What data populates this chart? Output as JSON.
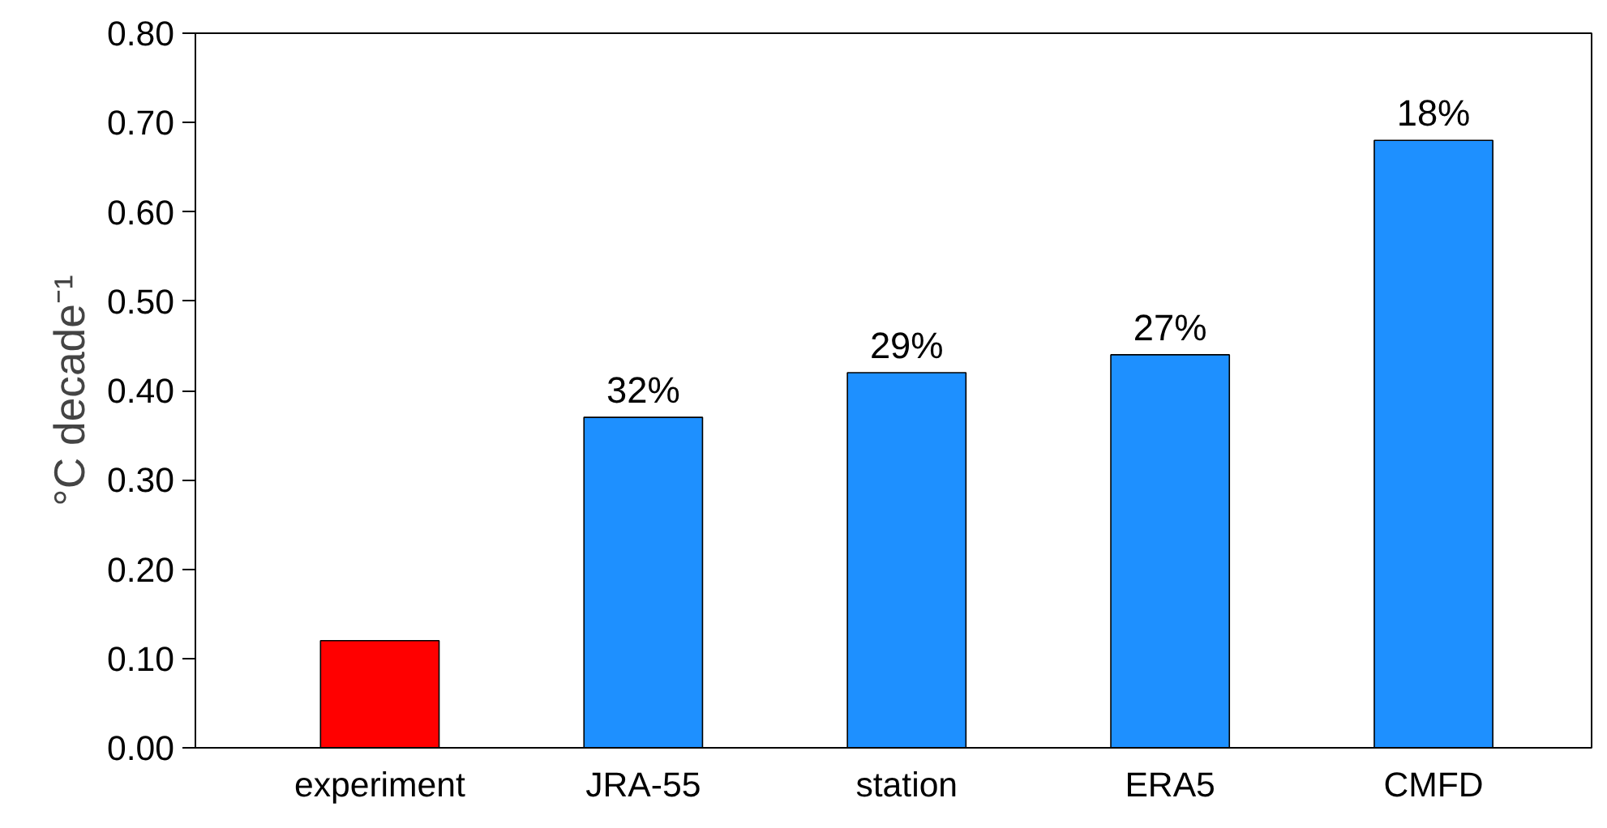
{
  "chart_data": {
    "type": "bar",
    "ylabel": "°C decade⁻¹",
    "categories": [
      "experiment",
      "JRA-55",
      "station",
      "ERA5",
      "CMFD"
    ],
    "values": [
      0.12,
      0.37,
      0.42,
      0.44,
      0.68
    ],
    "colors": [
      "#ff0000",
      "#1e90ff",
      "#1e90ff",
      "#1e90ff",
      "#1e90ff"
    ],
    "annotations": [
      {
        "text": "32%",
        "x": "JRA-55",
        "y": 0.37
      },
      {
        "text": "29%",
        "x": "station",
        "y": 0.42
      },
      {
        "text": "27%",
        "x": "ERA5",
        "y": 0.44
      },
      {
        "text": "18%",
        "x": "CMFD",
        "y": 0.68
      }
    ],
    "ylim": [
      0,
      0.8
    ],
    "yticks": [
      {
        "value": 0,
        "label": "0.00"
      },
      {
        "value": 0.1,
        "label": "0.10"
      },
      {
        "value": 0.2,
        "label": "0.20"
      },
      {
        "value": 0.3,
        "label": "0.30"
      },
      {
        "value": 0.4,
        "label": "0.40"
      },
      {
        "value": 0.5,
        "label": "0.50"
      },
      {
        "value": 0.6,
        "label": "0.60"
      },
      {
        "value": 0.7,
        "label": "0.70"
      },
      {
        "value": 0.8,
        "label": "0.80"
      }
    ],
    "grid": false
  }
}
